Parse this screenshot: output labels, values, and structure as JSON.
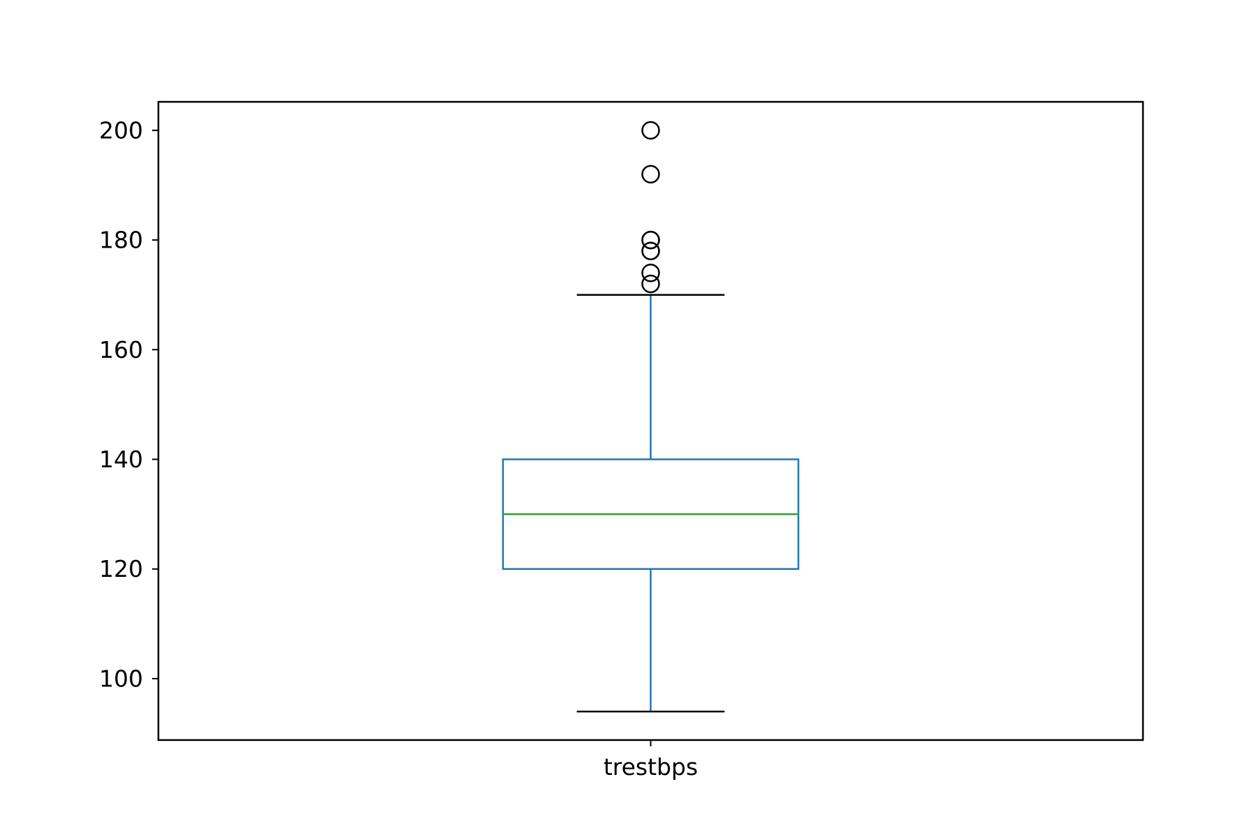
{
  "chart_data": {
    "type": "box",
    "title": "",
    "xlabel": "",
    "ylabel": "",
    "categories": [
      "trestbps"
    ],
    "ylim": [
      88.8,
      205.2
    ],
    "yticks": [
      100,
      120,
      140,
      160,
      180,
      200
    ],
    "grid": false,
    "legend": "none",
    "boxes": [
      {
        "category": "trestbps",
        "whisker_low": 94,
        "q1": 120,
        "median": 130,
        "q3": 140,
        "whisker_high": 170,
        "outliers": [
          172,
          174,
          178,
          178,
          180,
          180,
          192,
          200
        ]
      }
    ],
    "colors": {
      "box": "#1f77b4",
      "median": "#2ca02c",
      "caps": "#000000",
      "outliers": "#000000"
    }
  }
}
